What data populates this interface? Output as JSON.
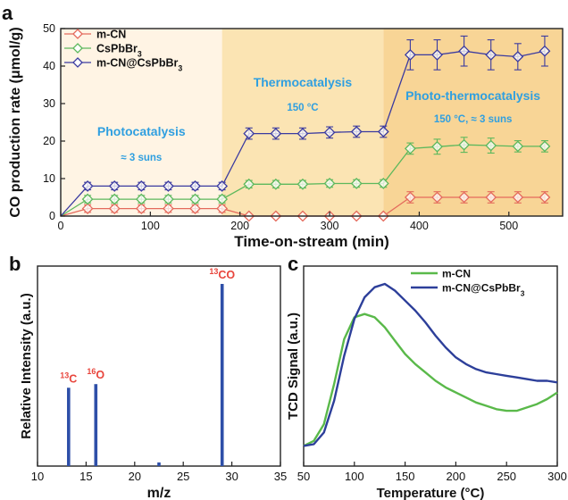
{
  "panels": {
    "a": "a",
    "b": "b",
    "c": "c"
  },
  "colors": {
    "mcn": "#e46a5c",
    "cspb": "#5cb85c",
    "comp": "#3a3aa0",
    "bar": "#2e4fa8",
    "phase": "#2f9fe0",
    "peak": "#e8453c",
    "tcd_mcn": "#5ab94a",
    "tcd_comp": "#2d3f9a"
  },
  "chart_data": [
    {
      "type": "line",
      "panel": "a",
      "xlabel": "Time-on-stream (min)",
      "ylabel": "CO production rate (μmol/g)",
      "xlim": [
        0,
        560
      ],
      "ylim": [
        0,
        50
      ],
      "xticks": [
        0,
        100,
        200,
        300,
        400,
        500
      ],
      "yticks": [
        0,
        10,
        20,
        30,
        40,
        50
      ],
      "legend": "top-left",
      "regions": [
        {
          "label": "Photocatalysis",
          "sublabel": "≈ 3 suns",
          "xrange": [
            0,
            180
          ],
          "color": "#fff4e4"
        },
        {
          "label": "Thermocatalysis",
          "sublabel": "150 °C",
          "xrange": [
            180,
            360
          ],
          "color": "#fbe4b3"
        },
        {
          "label": "Photo-thermocatalysis",
          "sublabel": "150 °C, ≈ 3 suns",
          "xrange": [
            360,
            560
          ],
          "color": "#f8d596"
        }
      ],
      "x": [
        0,
        30,
        60,
        90,
        120,
        150,
        180,
        210,
        240,
        270,
        300,
        330,
        360,
        390,
        420,
        450,
        480,
        510,
        540
      ],
      "series": [
        {
          "name": "m-CN",
          "color": "#e46a5c",
          "values": [
            0,
            2,
            2,
            2,
            2,
            2,
            2,
            0,
            0,
            0,
            0,
            0,
            0,
            5,
            5,
            5,
            5,
            5,
            5
          ],
          "errors": [
            0,
            1,
            1,
            1,
            1,
            1,
            1,
            0,
            0,
            0,
            0,
            0,
            0,
            1.5,
            1.5,
            1.5,
            1.5,
            1.5,
            1.5
          ]
        },
        {
          "name": "CsPbBr3",
          "color": "#5cb85c",
          "values": [
            0,
            4.5,
            4.5,
            4.5,
            4.5,
            4.5,
            4.5,
            8.5,
            8.5,
            8.5,
            8.7,
            8.7,
            8.7,
            18,
            18.5,
            19,
            18.8,
            18.6,
            18.6
          ],
          "errors": [
            0,
            1,
            1,
            1,
            1,
            1,
            1,
            1,
            1,
            1,
            1,
            1,
            1,
            1.5,
            2,
            2,
            2,
            1.5,
            1.5
          ]
        },
        {
          "name": "m-CN@CsPbBr3",
          "color": "#3a3aa0",
          "values": [
            0,
            8,
            8,
            8,
            8,
            8,
            8,
            22,
            22,
            22,
            22.3,
            22.5,
            22.5,
            43,
            43,
            44,
            43,
            42.5,
            44
          ],
          "errors": [
            0,
            1,
            1,
            1,
            1,
            1,
            1,
            1.5,
            1.5,
            1.5,
            1.5,
            1.5,
            1.5,
            4,
            4,
            4,
            4,
            3.5,
            4
          ]
        }
      ]
    },
    {
      "type": "bar",
      "panel": "b",
      "xlabel": "m/z",
      "ylabel": "Relative Intensity (a.u.)",
      "xlim": [
        10,
        35
      ],
      "xticks": [
        10,
        15,
        20,
        25,
        30,
        35
      ],
      "ylim": [
        0,
        1
      ],
      "bars": [
        {
          "x": 13.2,
          "value": 0.43,
          "label": "13C",
          "label_sup": "13",
          "label_base": "C"
        },
        {
          "x": 16.0,
          "value": 0.45,
          "label": "16O",
          "label_sup": "16",
          "label_base": "O"
        },
        {
          "x": 22.5,
          "value": 0.02,
          "label": ""
        },
        {
          "x": 29.0,
          "value": 1.0,
          "label": "13CO",
          "label_sup": "13",
          "label_base": "CO"
        }
      ]
    },
    {
      "type": "line",
      "panel": "c",
      "xlabel": "Temperature (°C)",
      "ylabel": "TCD Signal (a.u.)",
      "xlim": [
        50,
        300
      ],
      "xticks": [
        50,
        100,
        150,
        200,
        250,
        300
      ],
      "ylim": [
        0,
        1
      ],
      "legend": "top-right",
      "series": [
        {
          "name": "m-CN",
          "color": "#5ab94a",
          "x": [
            50,
            60,
            70,
            80,
            90,
            100,
            110,
            120,
            130,
            140,
            150,
            160,
            170,
            180,
            190,
            200,
            210,
            220,
            230,
            240,
            250,
            260,
            270,
            280,
            290,
            300
          ],
          "values": [
            0.03,
            0.06,
            0.16,
            0.4,
            0.67,
            0.8,
            0.82,
            0.8,
            0.74,
            0.66,
            0.58,
            0.52,
            0.47,
            0.42,
            0.38,
            0.35,
            0.32,
            0.29,
            0.27,
            0.25,
            0.24,
            0.24,
            0.26,
            0.28,
            0.31,
            0.35
          ]
        },
        {
          "name": "m-CN@CsPbBr3",
          "color": "#2d3f9a",
          "x": [
            50,
            60,
            70,
            80,
            90,
            100,
            110,
            120,
            130,
            140,
            150,
            160,
            170,
            180,
            190,
            200,
            210,
            220,
            230,
            240,
            250,
            260,
            270,
            280,
            290,
            300
          ],
          "values": [
            0.03,
            0.04,
            0.11,
            0.3,
            0.57,
            0.79,
            0.92,
            0.98,
            1.0,
            0.96,
            0.9,
            0.84,
            0.77,
            0.69,
            0.62,
            0.56,
            0.52,
            0.49,
            0.47,
            0.46,
            0.45,
            0.44,
            0.43,
            0.42,
            0.42,
            0.41
          ]
        }
      ]
    }
  ]
}
